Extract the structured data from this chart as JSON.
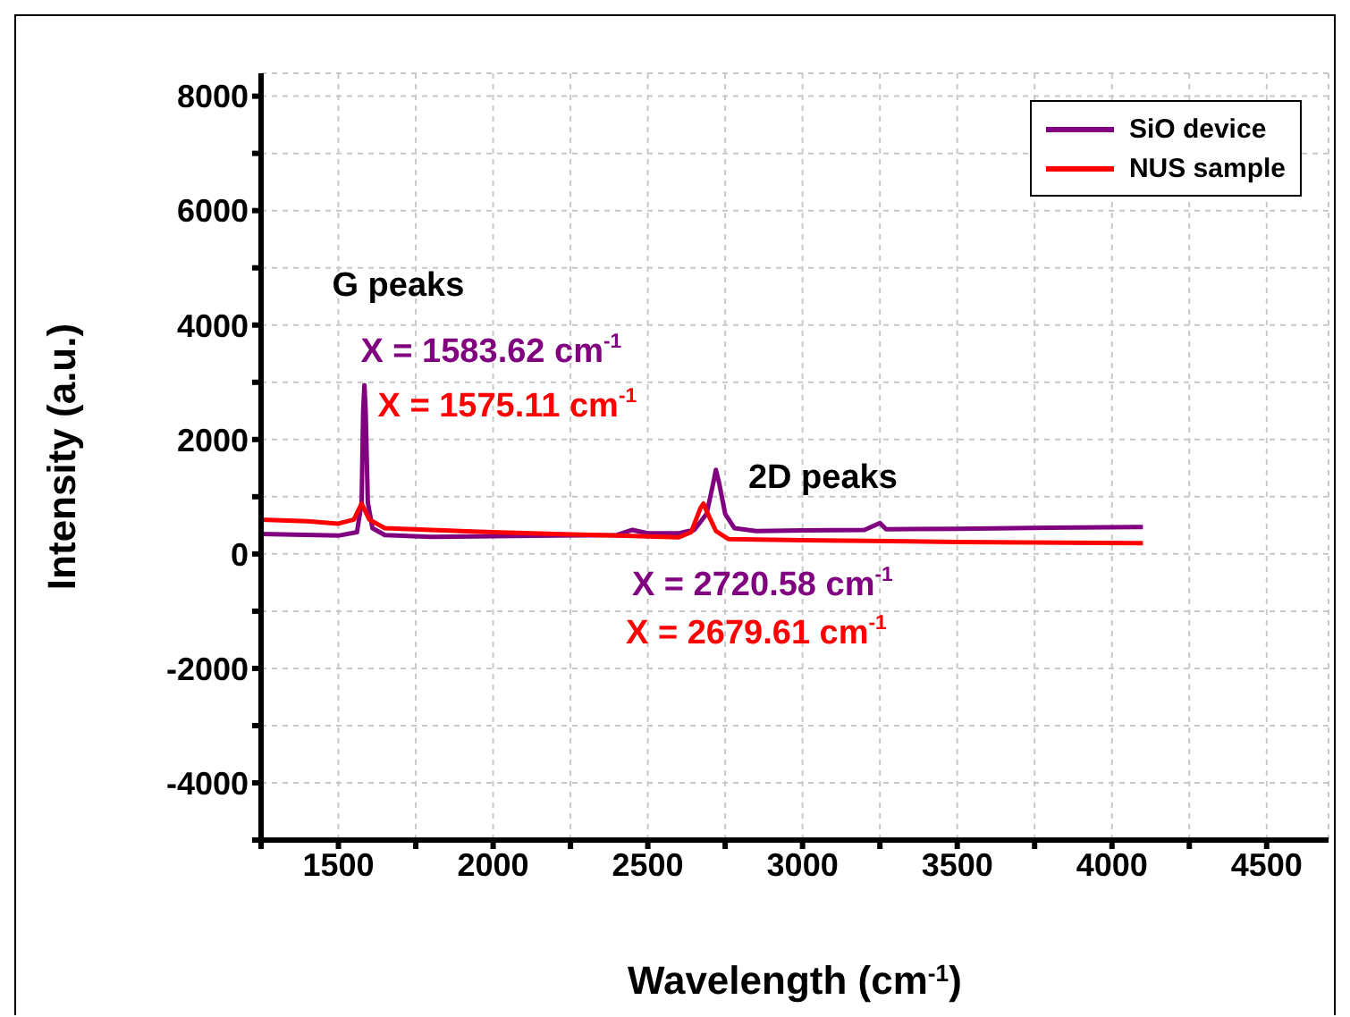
{
  "chart_data": {
    "type": "line",
    "xlabel": "Wavelength (cm$^{-1}$)",
    "ylabel": "Intensity (a.u.)",
    "xlim": [
      1250,
      4700
    ],
    "xticks": [
      {
        "value": 1250,
        "label": null
      },
      1500,
      {
        "value": 1750,
        "label": null
      },
      2000,
      {
        "value": 2250,
        "label": null
      },
      2500,
      {
        "value": 2750,
        "label": null
      },
      3000,
      {
        "value": 3250,
        "label": null
      },
      3500,
      {
        "value": 3750,
        "label": null
      },
      4000,
      {
        "value": 4250,
        "label": null
      },
      4500
    ],
    "ylim": [
      -5000,
      8400
    ],
    "yticks": [
      {
        "value": -5000,
        "label": null
      },
      -4000,
      {
        "value": -3000,
        "label": null
      },
      -2000,
      {
        "value": -1000,
        "label": null
      },
      0,
      {
        "value": 1000,
        "label": null
      },
      2000,
      {
        "value": 3000,
        "label": null
      },
      4000,
      {
        "value": 5000,
        "label": null
      },
      6000,
      {
        "value": 7000,
        "label": null
      },
      8000
    ],
    "grid": true,
    "legend": "top right",
    "marker": "none",
    "line_style": "solid",
    "series": [
      {
        "name": "SiO device",
        "color": "#800080",
        "x": [
          1250,
          1500,
          1560,
          1575,
          1580,
          1584,
          1588,
          1595,
          1610,
          1650,
          1800,
          2000,
          2200,
          2400,
          2450,
          2500,
          2600,
          2650,
          2690,
          2710,
          2720,
          2730,
          2750,
          2780,
          2850,
          3000,
          3200,
          3250,
          3270,
          3500,
          3800,
          4100
        ],
        "values": [
          350,
          320,
          380,
          900,
          2500,
          2950,
          2500,
          900,
          450,
          330,
          300,
          310,
          320,
          330,
          420,
          360,
          360,
          420,
          700,
          1200,
          1470,
          1250,
          700,
          450,
          400,
          410,
          420,
          540,
          430,
          440,
          460,
          470
        ]
      },
      {
        "name": "NUS sample",
        "color": "#ff0000",
        "x": [
          1250,
          1400,
          1500,
          1550,
          1575,
          1600,
          1650,
          1800,
          2000,
          2200,
          2400,
          2600,
          2640,
          2670,
          2680,
          2690,
          2720,
          2760,
          3000,
          3500,
          4100
        ],
        "values": [
          600,
          570,
          530,
          600,
          880,
          600,
          450,
          420,
          380,
          350,
          320,
          290,
          380,
          800,
          880,
          750,
          400,
          260,
          240,
          210,
          190
        ]
      }
    ],
    "annotations": [
      {
        "text": "G peaks",
        "x": 1583.62,
        "y": 2950
      },
      {
        "text": "X = 1583.62 cm$^{-1}$",
        "x": 1583.62,
        "y": 2950
      },
      {
        "text": "X = 1575.11 cm$^{-1}$",
        "x": 1575.11,
        "y": 880
      },
      {
        "text": "2D peaks",
        "x": 2720.58,
        "y": 1470
      },
      {
        "text": "X = 2720.58 cm$^{-1}$",
        "x": 2720.58,
        "y": 1470
      },
      "X = 2679.61 cm$^{-1}$"
    ]
  }
}
